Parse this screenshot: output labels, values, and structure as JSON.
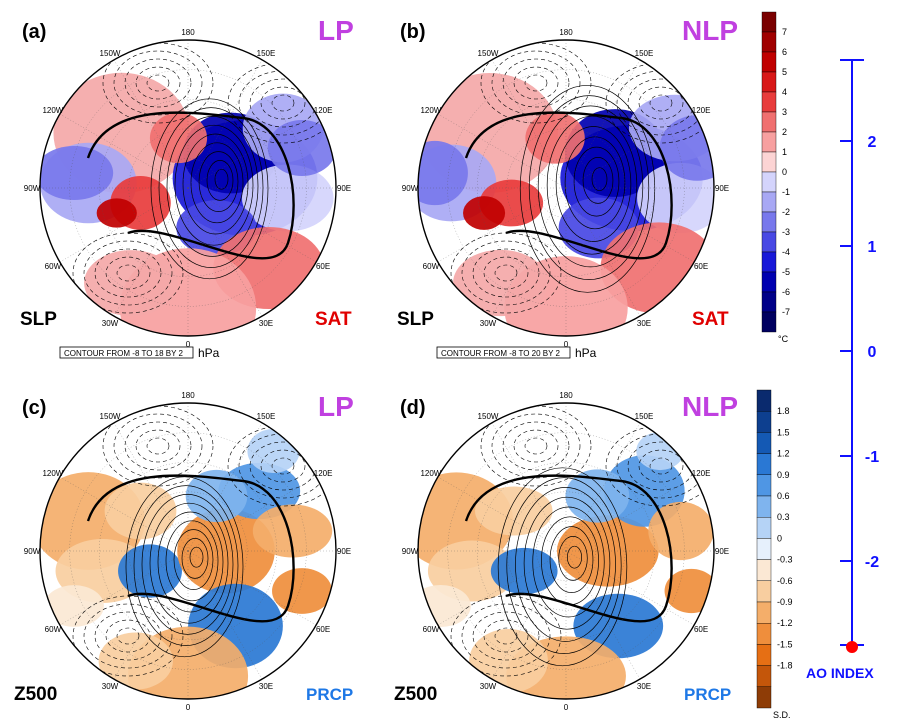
{
  "panels": [
    {
      "label": "(a)",
      "regime": "LP",
      "left_var": "SLP",
      "right_var": "SAT",
      "right_type": "temp",
      "contour": "CONTOUR FROM -8 TO 18 BY 2",
      "unit": "hPa",
      "scale": 1.0
    },
    {
      "label": "(b)",
      "regime": "NLP",
      "left_var": "SLP",
      "right_var": "SAT",
      "right_type": "temp",
      "contour": "CONTOUR FROM -8 TO 20 BY 2",
      "unit": "hPa",
      "scale": 1.15
    },
    {
      "label": "(c)",
      "regime": "LP",
      "left_var": "Z500",
      "right_var": "PRCP",
      "right_type": "prcp",
      "contour": "",
      "unit": "",
      "scale": 1.0
    },
    {
      "label": "(d)",
      "regime": "NLP",
      "left_var": "Z500",
      "right_var": "PRCP",
      "right_type": "prcp",
      "contour": "",
      "unit": "",
      "scale": 1.1
    }
  ],
  "longitude_labels": [
    "180",
    "150E",
    "120E",
    "90E",
    "60E",
    "30E",
    "0",
    "30W",
    "60W",
    "90W",
    "120W",
    "150W"
  ],
  "colorbar_temp": {
    "unit": "°C",
    "ticks": [
      "7",
      "6",
      "5",
      "4",
      "3",
      "2",
      "1",
      "0",
      "-1",
      "-2",
      "-3",
      "-4",
      "-5",
      "-6",
      "-7"
    ],
    "colors": [
      "#7a0000",
      "#a00000",
      "#c00000",
      "#d81818",
      "#e83c3c",
      "#f07070",
      "#f7a0a0",
      "#fcd4d4",
      "#d4d4fc",
      "#a8a8f4",
      "#7878ec",
      "#4848e4",
      "#1818d8",
      "#0000b0",
      "#000088",
      "#000060"
    ]
  },
  "colorbar_prcp": {
    "unit": "S.D.",
    "ticks": [
      "1.8",
      "1.5",
      "1.2",
      "0.9",
      "0.6",
      "0.3",
      "0",
      "-0.3",
      "-0.6",
      "-0.9",
      "-1.2",
      "-1.5",
      "-1.8"
    ],
    "colors": [
      "#0a2a6e",
      "#0d3f8f",
      "#1459b4",
      "#2a78d4",
      "#4f96e4",
      "#7fb4ee",
      "#b5d3f6",
      "#e6f0fc",
      "#fbe8d4",
      "#f8cea0",
      "#f4ae6a",
      "#ef8e3c",
      "#e66f14",
      "#c4560a",
      "#8e3c06"
    ]
  },
  "ao_axis": {
    "ticks": [
      "2",
      "1",
      "0",
      "-1",
      "-2"
    ],
    "label": "AO INDEX",
    "marker_value": -2.8,
    "color": "#1010ff",
    "marker_color": "#ff0000"
  }
}
